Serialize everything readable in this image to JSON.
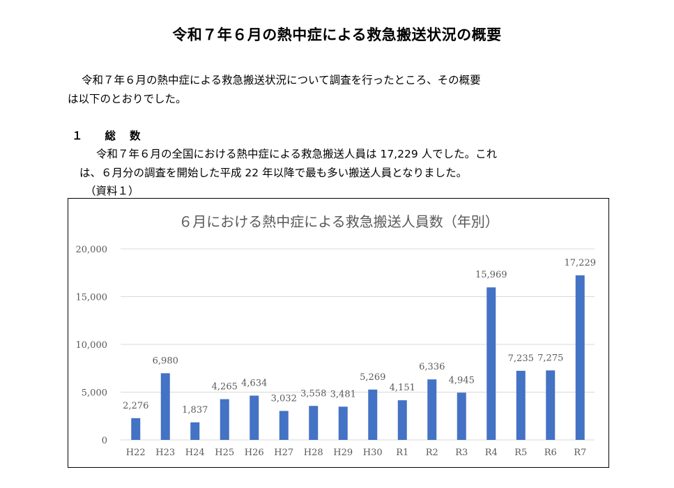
{
  "document": {
    "title": "令和７年６月の熱中症による救急搬送状況の概要",
    "intro_line1": "令和７年６月の熱中症による救急搬送状況について調査を行ったところ、その概要",
    "intro_line2": "は以下のとおりでした。",
    "section_number": "１",
    "section_title_a": "総",
    "section_title_b": "数",
    "section_line1": "令和７年６月の全国における熱中症による救急搬送人員は 17,229 人でした。これ",
    "section_line2": "は、６月分の調査を開始した平成 22 年以降で最も多い搬送人員となりました。",
    "reference_note": "（資料１）"
  },
  "colors": {
    "bar": "#4472C4",
    "grid": "#D9D9D9",
    "title_text": "#595959",
    "axis_text": "#595959"
  },
  "chart_data": {
    "type": "bar",
    "title": "６月における熱中症による救急搬送人員数（年別）",
    "categories": [
      "H22",
      "H23",
      "H24",
      "H25",
      "H26",
      "H27",
      "H28",
      "H29",
      "H30",
      "R1",
      "R2",
      "R3",
      "R4",
      "R5",
      "R6",
      "R7"
    ],
    "values": [
      2276,
      6980,
      1837,
      4265,
      4634,
      3032,
      3558,
      3481,
      5269,
      4151,
      6336,
      4945,
      15969,
      7235,
      7275,
      17229
    ],
    "value_labels": [
      "2,276",
      "6,980",
      "1,837",
      "4,265",
      "4,634",
      "3,032",
      "3,558",
      "3,481",
      "5,269",
      "4,151",
      "6,336",
      "4,945",
      "15,969",
      "7,235",
      "7,275",
      "17,229"
    ],
    "yticks": [
      0,
      5000,
      10000,
      15000,
      20000
    ],
    "ytick_labels": [
      "0",
      "5,000",
      "10,000",
      "15,000",
      "20,000"
    ],
    "ylim": [
      0,
      20000
    ],
    "xlabel": "",
    "ylabel": "",
    "grid": true,
    "legend": "none"
  }
}
